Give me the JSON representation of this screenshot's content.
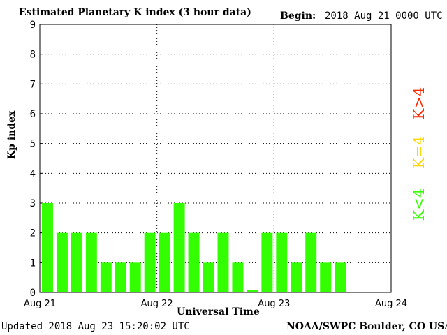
{
  "header": {
    "title": "Estimated Planetary K index (3 hour data)",
    "begin_label": "Begin:",
    "begin_value": "2018 Aug 21 0000 UTC"
  },
  "footer": {
    "updated": "Updated 2018 Aug 23 15:20:02 UTC",
    "credit": "NOAA/SWPC Boulder, CO USA"
  },
  "legend": [
    {
      "label": "K<4",
      "color": "#33ff00"
    },
    {
      "label": "K=4",
      "color": "#ffd700"
    },
    {
      "label": "K>4",
      "color": "#ff2a00"
    }
  ],
  "chart_data": {
    "type": "bar",
    "title": "Estimated Planetary K index (3 hour data)",
    "xlabel": "Universal Time",
    "ylabel": "Kp index",
    "ylim": [
      0,
      9
    ],
    "yticks": [
      "0",
      "1",
      "2",
      "3",
      "4",
      "5",
      "6",
      "7",
      "8",
      "9"
    ],
    "xticks": [
      "Aug 21",
      "Aug 22",
      "Aug 23",
      "Aug 24"
    ],
    "grid": true,
    "bar_color": "#33ff00",
    "values": [
      3,
      2,
      2,
      2,
      1,
      1,
      1,
      2,
      2,
      3,
      2,
      1,
      2,
      1,
      0.07,
      2,
      2,
      1,
      2,
      1,
      1
    ]
  }
}
